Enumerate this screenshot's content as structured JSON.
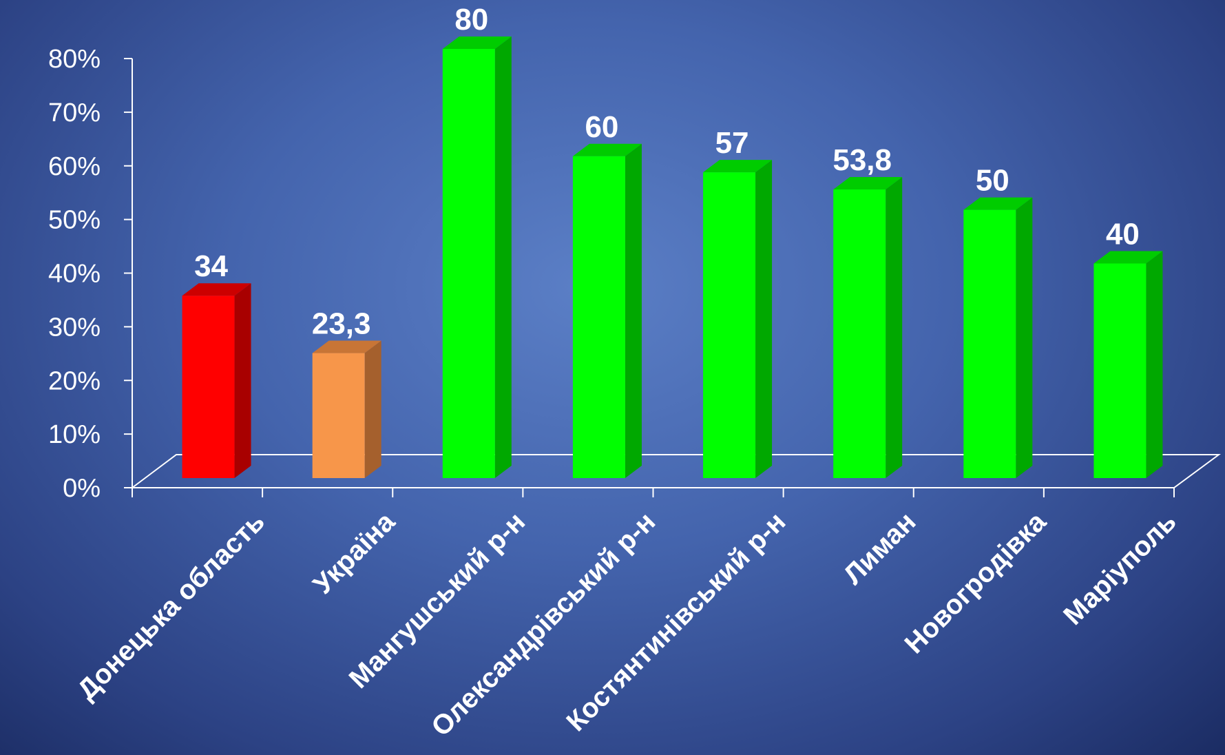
{
  "chart_data": {
    "type": "bar",
    "categories": [
      "Донецька область",
      "Україна",
      "Мангушський р-н",
      "Олександрівський р-н",
      "Костянтинівський р-н",
      "Лиман",
      "Новогродівка",
      "Маріуполь"
    ],
    "values": [
      34,
      23.3,
      80,
      60,
      57,
      53.8,
      50,
      40
    ],
    "data_labels": [
      "34",
      "23,3",
      "80",
      "60",
      "57",
      "53,8",
      "50",
      "40"
    ],
    "y_ticks": [
      "0%",
      "10%",
      "20%",
      "30%",
      "40%",
      "50%",
      "60%",
      "70%",
      "80%"
    ],
    "ylim": [
      0,
      80
    ],
    "style": "3d-column",
    "grid": false,
    "bar_colors": [
      "#ff0000",
      "#f7964a",
      "#00ff00",
      "#00ff00",
      "#00ff00",
      "#00ff00",
      "#00ff00",
      "#00ff00"
    ],
    "bar_side_colors": [
      "#a80000",
      "#a5602d",
      "#00a800",
      "#00a800",
      "#00a800",
      "#00a800",
      "#00a800",
      "#00a800"
    ],
    "bar_top_colors": [
      "#cc0000",
      "#c87536",
      "#00cc00",
      "#00cc00",
      "#00cc00",
      "#00cc00",
      "#00cc00",
      "#00cc00"
    ]
  }
}
